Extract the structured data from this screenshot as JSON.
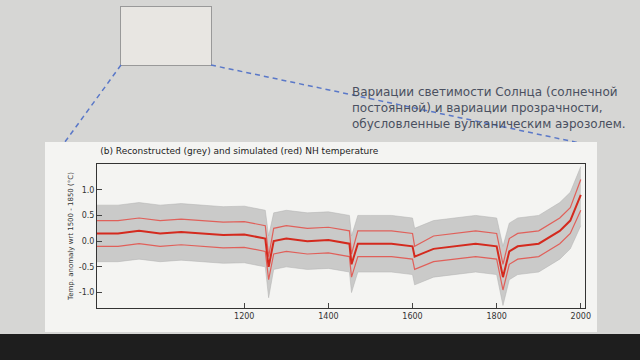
{
  "chart_data": {
    "type": "line",
    "title": "(b) Reconstructed (grey) and simulated (red) NH temperature",
    "y_label": "Temp. anomaly wrt 1500 - 1850 (°C)",
    "x": [
      850,
      900,
      950,
      1000,
      1050,
      1100,
      1150,
      1200,
      1250,
      1258,
      1270,
      1300,
      1350,
      1400,
      1450,
      1455,
      1470,
      1500,
      1550,
      1600,
      1605,
      1650,
      1700,
      1750,
      1800,
      1815,
      1830,
      1850,
      1900,
      1950,
      1975,
      2000
    ],
    "series": [
      {
        "type": "area",
        "color": "#b0b0b0",
        "values": [
          -0.4,
          -0.4,
          -0.35,
          -0.4,
          -0.37,
          -0.4,
          -0.43,
          -0.42,
          -0.5,
          -1.1,
          -0.55,
          -0.5,
          -0.55,
          -0.53,
          -0.6,
          -1.0,
          -0.6,
          -0.6,
          -0.6,
          -0.65,
          -0.85,
          -0.7,
          -0.65,
          -0.6,
          -0.65,
          -1.25,
          -0.75,
          -0.65,
          -0.6,
          -0.35,
          -0.15,
          0.3
        ]
      },
      {
        "type": "area",
        "color": "#b0b0b0",
        "values": [
          0.7,
          0.7,
          0.75,
          0.7,
          0.73,
          0.7,
          0.67,
          0.68,
          0.6,
          0.1,
          0.55,
          0.6,
          0.55,
          0.57,
          0.5,
          0.1,
          0.5,
          0.5,
          0.5,
          0.45,
          0.25,
          0.4,
          0.45,
          0.5,
          0.45,
          -0.1,
          0.35,
          0.45,
          0.5,
          0.75,
          0.95,
          1.45
        ]
      },
      {
        "type": "line",
        "color": "#e0605a",
        "values": [
          0.4,
          0.4,
          0.45,
          0.4,
          0.43,
          0.4,
          0.37,
          0.38,
          0.3,
          -0.3,
          0.25,
          0.3,
          0.25,
          0.27,
          0.2,
          -0.25,
          0.2,
          0.2,
          0.2,
          0.15,
          -0.1,
          0.1,
          0.15,
          0.2,
          0.15,
          -0.45,
          0.05,
          0.15,
          0.2,
          0.45,
          0.65,
          1.2
        ]
      },
      {
        "type": "line",
        "color": "#e0605a",
        "values": [
          -0.1,
          -0.1,
          -0.05,
          -0.1,
          -0.07,
          -0.1,
          -0.13,
          -0.12,
          -0.2,
          -0.75,
          -0.25,
          -0.2,
          -0.25,
          -0.23,
          -0.3,
          -0.7,
          -0.3,
          -0.3,
          -0.3,
          -0.35,
          -0.55,
          -0.4,
          -0.35,
          -0.3,
          -0.35,
          -0.95,
          -0.45,
          -0.35,
          -0.3,
          -0.05,
          0.15,
          0.6
        ]
      },
      {
        "type": "line",
        "color": "#d42a1e",
        "values": [
          0.15,
          0.15,
          0.2,
          0.15,
          0.18,
          0.15,
          0.12,
          0.13,
          0.05,
          -0.5,
          0.0,
          0.05,
          0.0,
          0.02,
          -0.05,
          -0.45,
          -0.05,
          -0.05,
          -0.05,
          -0.1,
          -0.3,
          -0.15,
          -0.1,
          -0.05,
          -0.1,
          -0.7,
          -0.2,
          -0.1,
          -0.05,
          0.2,
          0.4,
          0.9
        ]
      }
    ],
    "xlim": [
      850,
      2010
    ],
    "xticks": [
      1200,
      1400,
      1600,
      1800,
      2000
    ],
    "ylim": [
      -1.3,
      1.5
    ],
    "yticks": [
      {
        "value": -1.0,
        "label": "-1.0"
      },
      {
        "value": -0.5,
        "label": "-0.5"
      },
      {
        "value": 0,
        "label": "0.0"
      },
      {
        "value": 0.5,
        "label": "0.5"
      },
      {
        "value": 1.0,
        "label": "1.0"
      }
    ],
    "grid": false
  },
  "slide": {
    "text": "Вариации светимости Солнца (солнечной постоянной) и вариации прозрачности, обусловленные вулканическим аэрозолем."
  }
}
